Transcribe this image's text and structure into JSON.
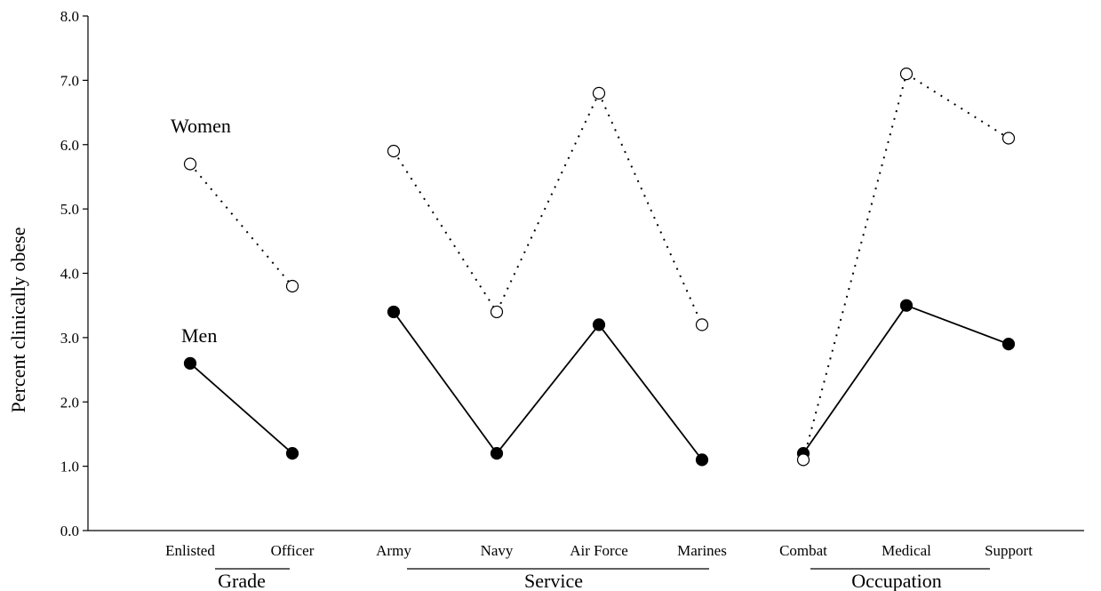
{
  "chart_data": {
    "type": "line",
    "ylabel": "Percent clinically obese",
    "ylim": [
      0,
      8
    ],
    "yticks": [
      "0.0",
      "1.0",
      "2.0",
      "3.0",
      "4.0",
      "5.0",
      "6.0",
      "7.0",
      "8.0"
    ],
    "grid": false,
    "legend": "none",
    "groups": [
      {
        "label": "Grade",
        "categories": [
          "Enlisted",
          "Officer"
        ],
        "series": [
          {
            "name": "Women",
            "values": [
              5.7,
              3.8
            ]
          },
          {
            "name": "Men",
            "values": [
              2.6,
              1.2
            ]
          }
        ]
      },
      {
        "label": "Service",
        "categories": [
          "Army",
          "Navy",
          "Air Force",
          "Marines"
        ],
        "series": [
          {
            "name": "Women",
            "values": [
              5.9,
              3.4,
              6.8,
              3.2
            ]
          },
          {
            "name": "Men",
            "values": [
              3.4,
              1.2,
              3.2,
              1.1
            ]
          }
        ]
      },
      {
        "label": "Occupation",
        "categories": [
          "Combat",
          "Medical",
          "Support"
        ],
        "series": [
          {
            "name": "Women",
            "values": [
              1.1,
              7.1,
              6.1
            ]
          },
          {
            "name": "Men",
            "values": [
              1.2,
              3.5,
              2.9
            ]
          }
        ]
      }
    ],
    "annotations": [
      "Women",
      "Men"
    ],
    "colors": {
      "women_marker_fill": "#ffffff",
      "men_marker_fill": "#000000",
      "line": "#000000"
    }
  }
}
